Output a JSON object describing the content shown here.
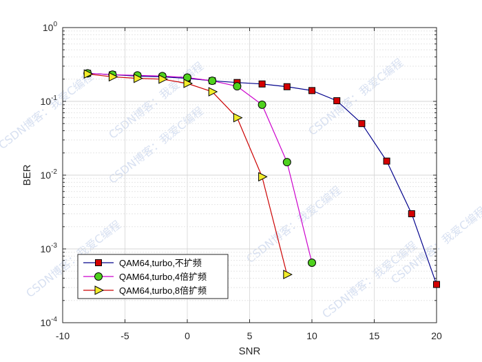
{
  "chart_data": {
    "type": "line",
    "xlabel": "SNR",
    "ylabel": "BER",
    "xlim": [
      -10,
      20
    ],
    "ylim": [
      0.0001,
      1
    ],
    "yscale": "log",
    "grid": true,
    "legend_position": "bottom-left",
    "x_ticks": [
      "-10",
      "-5",
      "0",
      "5",
      "10",
      "15",
      "20"
    ],
    "y_ticks": [
      {
        "base": "10",
        "exp": "0"
      },
      {
        "base": "10",
        "exp": "-1"
      },
      {
        "base": "10",
        "exp": "-2"
      },
      {
        "base": "10",
        "exp": "-3"
      },
      {
        "base": "10",
        "exp": "-4"
      }
    ],
    "series": [
      {
        "name": "QAM64,turbo,不扩频",
        "line_color": "#00008b",
        "marker": "square",
        "marker_color": "#d40000",
        "x": [
          -8,
          -6,
          -4,
          -2,
          0,
          2,
          4,
          6,
          8,
          10,
          12,
          14,
          16,
          18,
          20
        ],
        "y": [
          0.24,
          0.23,
          0.22,
          0.215,
          0.205,
          0.19,
          0.18,
          0.172,
          0.158,
          0.14,
          0.102,
          0.05,
          0.0155,
          0.003,
          0.00033
        ]
      },
      {
        "name": "QAM64,turbo,4倍扩频",
        "line_color": "#cc00cc",
        "marker": "circle",
        "marker_color": "#4fd11e",
        "x": [
          -8,
          -6,
          -4,
          -2,
          0,
          2,
          4,
          6,
          8,
          10
        ],
        "y": [
          0.24,
          0.23,
          0.225,
          0.22,
          0.21,
          0.19,
          0.16,
          0.09,
          0.015,
          0.00065
        ]
      },
      {
        "name": "QAM64,turbo,8倍扩频",
        "line_color": "#cc0000",
        "marker": "triangle-right",
        "marker_color": "#f2ec2a",
        "x": [
          -8,
          -6,
          -4,
          -2,
          0,
          2,
          4,
          6,
          8
        ],
        "y": [
          0.235,
          0.215,
          0.205,
          0.2,
          0.175,
          0.135,
          0.06,
          0.0095,
          0.00045
        ]
      }
    ]
  },
  "watermark": "CSDN博客：我爱C编程"
}
